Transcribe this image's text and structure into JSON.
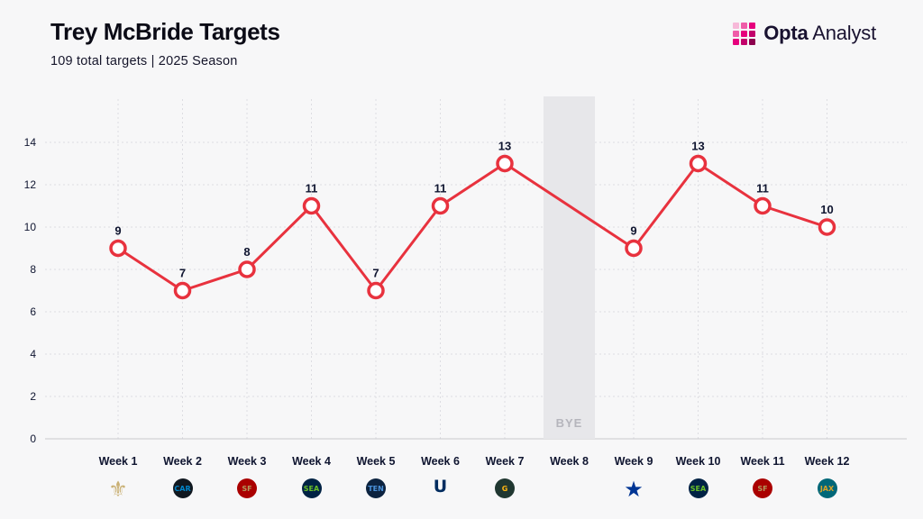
{
  "header": {
    "title": "Trey McBride Targets",
    "subtitle": "109 total targets | 2025 Season",
    "brand": {
      "name_bold": "Opta",
      "name_light": "Analyst",
      "accent": "#e6007d",
      "mark_colors": [
        "#f7b9d9",
        "#ef5ca8",
        "#e6007d",
        "#ef5ca8",
        "#e6007d",
        "#c2006a",
        "#e6007d",
        "#c2006a",
        "#8d004e"
      ]
    }
  },
  "chart_data": {
    "type": "line",
    "title": "Trey McBride Targets",
    "subtitle": "109 total targets | 2025 Season",
    "season": "2025 Season",
    "total_targets": 109,
    "categories": [
      "Week 1",
      "Week 2",
      "Week 3",
      "Week 4",
      "Week 5",
      "Week 6",
      "Week 7",
      "Week 8",
      "Week 9",
      "Week 10",
      "Week 11",
      "Week 12"
    ],
    "values": [
      9,
      7,
      8,
      11,
      7,
      11,
      13,
      null,
      9,
      13,
      11,
      10
    ],
    "bye_week": "Week 8",
    "bye_label": "BYE",
    "ylim": [
      0,
      14
    ],
    "ytick_step": 2,
    "yticks": [
      0,
      2,
      4,
      6,
      8,
      10,
      12,
      14
    ],
    "grid": true,
    "legend": "none",
    "line_color": "#e8323e",
    "marker_fill": "#ffffff",
    "text_color": "#0f1530",
    "bye_fill": "#e7e7ea",
    "bye_text_color": "#b5b5bc",
    "grid_color": "#dddde2",
    "baseline_color": "#c8c8cd",
    "opponents": [
      {
        "team": "New Orleans Saints",
        "type": "glyph",
        "glyph": "⚜",
        "fg": "#c9b074",
        "size": "24px"
      },
      {
        "team": "Carolina Panthers",
        "type": "badge",
        "abbr": "CAR",
        "bg": "#101820",
        "fg": "#0085ca"
      },
      {
        "team": "San Francisco 49ers",
        "type": "badge",
        "abbr": "SF",
        "bg": "#aa0000",
        "fg": "#b3995d"
      },
      {
        "team": "Seattle Seahawks",
        "type": "badge",
        "abbr": "SEA",
        "bg": "#002244",
        "fg": "#69be28"
      },
      {
        "team": "Tennessee Titans",
        "type": "badge",
        "abbr": "TEN",
        "bg": "#0c2340",
        "fg": "#4b92db"
      },
      {
        "team": "Indianapolis Colts",
        "type": "glyph",
        "glyph": "U",
        "fg": "#002c5f",
        "size": "19px"
      },
      {
        "team": "Green Bay Packers",
        "type": "badge",
        "abbr": "G",
        "bg": "#203731",
        "fg": "#ffb612"
      },
      null,
      {
        "team": "Dallas Cowboys",
        "type": "glyph",
        "glyph": "★",
        "fg": "#003594",
        "size": "24px"
      },
      {
        "team": "Seattle Seahawks",
        "type": "badge",
        "abbr": "SEA",
        "bg": "#002244",
        "fg": "#69be28"
      },
      {
        "team": "San Francisco 49ers",
        "type": "badge",
        "abbr": "SF",
        "bg": "#aa0000",
        "fg": "#b3995d"
      },
      {
        "team": "Jacksonville Jaguars",
        "type": "badge",
        "abbr": "JAX",
        "bg": "#006778",
        "fg": "#d7a22a"
      }
    ]
  }
}
